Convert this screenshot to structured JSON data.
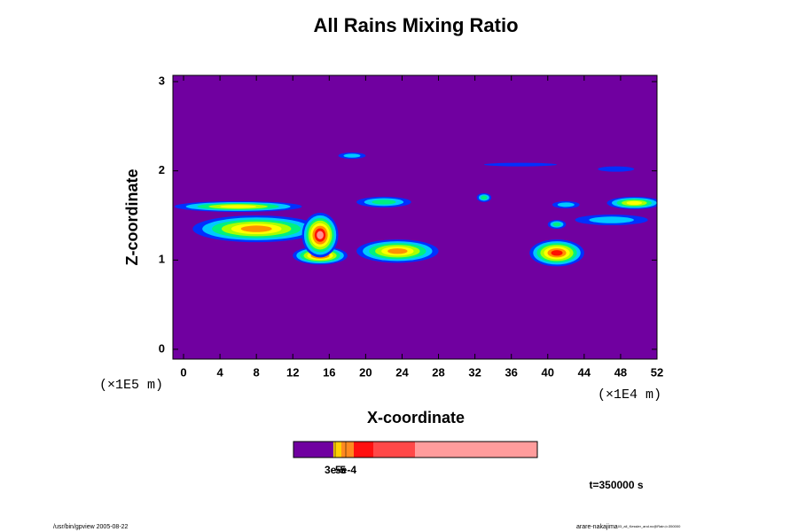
{
  "chart_data": {
    "type": "contour",
    "title": "All Rains Mixing Ratio",
    "x_label": "X-coordinate",
    "y_label": "Z-coordinate",
    "x_unit": "(×1E4 m)",
    "y_unit": "(×1E5 m)",
    "xlim": [
      -1.17,
      52
    ],
    "ylim": [
      -0.11,
      3.07
    ],
    "xticks": [
      0,
      4,
      8,
      12,
      16,
      20,
      24,
      28,
      32,
      36,
      40,
      44,
      48,
      52
    ],
    "yticks": [
      0,
      1,
      2,
      3
    ],
    "colors": [
      "#7000a0",
      "#0030ff",
      "#00c8ff",
      "#00f080",
      "#a8ff00",
      "#ffff00",
      "#ff9000",
      "#ff1000",
      "#ff9090"
    ],
    "features": [
      {
        "x": 6,
        "z": 1.6,
        "rx": 7,
        "rz": 0.06,
        "level": 5
      },
      {
        "x": 8,
        "z": 1.35,
        "rx": 7,
        "rz": 0.15,
        "level": 6
      },
      {
        "x": 15,
        "z": 1.05,
        "rx": 3,
        "rz": 0.1,
        "level": 7
      },
      {
        "x": 15,
        "z": 1.28,
        "rx": 2,
        "rz": 0.25,
        "level": 8
      },
      {
        "x": 23.5,
        "z": 1.1,
        "rx": 4.5,
        "rz": 0.13,
        "level": 6
      },
      {
        "x": 18.5,
        "z": 2.17,
        "rx": 1.5,
        "rz": 0.035,
        "level": 2
      },
      {
        "x": 41,
        "z": 1.08,
        "rx": 3,
        "rz": 0.15,
        "level": 7
      },
      {
        "x": 49.5,
        "z": 1.64,
        "rx": 3,
        "rz": 0.07,
        "level": 5
      },
      {
        "x": 33,
        "z": 1.7,
        "rx": 0.8,
        "rz": 0.05,
        "level": 3
      },
      {
        "x": 41,
        "z": 1.4,
        "rx": 1,
        "rz": 0.05,
        "level": 3
      },
      {
        "x": 47,
        "z": 1.45,
        "rx": 4,
        "rz": 0.06,
        "level": 2
      },
      {
        "x": 37,
        "z": 2.07,
        "rx": 4,
        "rz": 0.02,
        "level": 1
      },
      {
        "x": 22,
        "z": 1.65,
        "rx": 3,
        "rz": 0.06,
        "level": 3
      },
      {
        "x": 42,
        "z": 1.62,
        "rx": 1.5,
        "rz": 0.04,
        "level": 2
      },
      {
        "x": 47.5,
        "z": 2.02,
        "rx": 2,
        "rz": 0.03,
        "level": 1
      }
    ],
    "colorbar": {
      "colors": [
        "#7000a0",
        "#ffd000",
        "#ff8a20",
        "#ff1010",
        "#ff4848",
        "#ff9c9c"
      ],
      "ticks": [
        {
          "value": 3e-05,
          "label": "3e-5"
        },
        {
          "value": 0.0005,
          "label": "5e-4"
        }
      ]
    },
    "time_label": "t=350000 s",
    "footer_left": "/usr/bin/gpview 2005-08-22",
    "footer_right": "arare-nakajima",
    "footer_right_small": "03_all_Kessler_and.nc@Rain,t=350000"
  }
}
